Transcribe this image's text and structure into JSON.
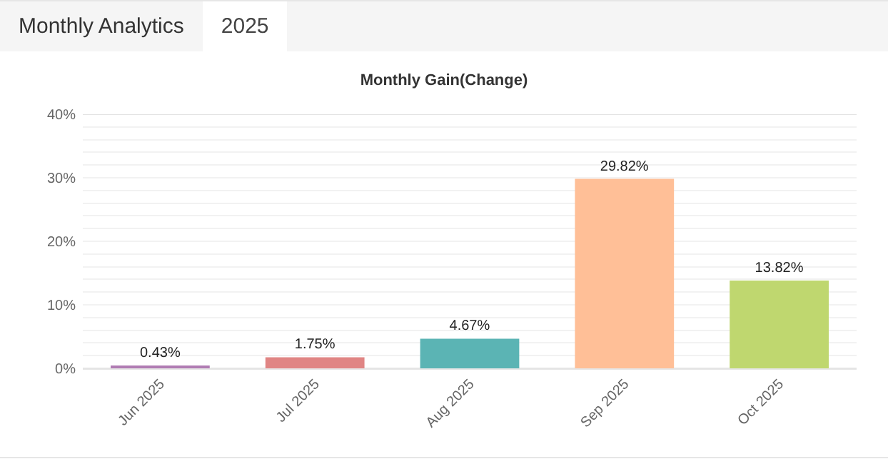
{
  "chart_data": {
    "type": "bar",
    "title": "Monthly Gain(Change)",
    "annotations": [
      "Monthly Analytics",
      "2025"
    ],
    "categories": [
      "Jun 2025",
      "Jul 2025",
      "Aug 2025",
      "Sep 2025",
      "Oct 2025"
    ],
    "values": [
      0.43,
      1.75,
      4.67,
      29.82,
      13.82
    ],
    "value_labels": [
      "0.43%",
      "1.75%",
      "4.67%",
      "29.82%",
      "13.82%"
    ],
    "colors": [
      "#b07cb3",
      "#e08584",
      "#5bb4b4",
      "#ffbf97",
      "#bfd76f"
    ],
    "ylim": [
      0,
      40
    ],
    "yticks": [
      {
        "value": 0,
        "label": "0%"
      },
      {
        "value": 2,
        "label": null
      },
      {
        "value": 4,
        "label": null
      },
      {
        "value": 6,
        "label": null
      },
      {
        "value": 8,
        "label": null
      },
      {
        "value": 10,
        "label": "10%"
      },
      {
        "value": 12,
        "label": null
      },
      {
        "value": 14,
        "label": null
      },
      {
        "value": 16,
        "label": null
      },
      {
        "value": 18,
        "label": null
      },
      {
        "value": 20,
        "label": "20%"
      },
      {
        "value": 22,
        "label": null
      },
      {
        "value": 24,
        "label": null
      },
      {
        "value": 26,
        "label": null
      },
      {
        "value": 28,
        "label": null
      },
      {
        "value": 30,
        "label": "30%"
      },
      {
        "value": 32,
        "label": null
      },
      {
        "value": 34,
        "label": null
      },
      {
        "value": 36,
        "label": null
      },
      {
        "value": 38,
        "label": null
      },
      {
        "value": 40,
        "label": "40%"
      }
    ],
    "grid": "y"
  }
}
